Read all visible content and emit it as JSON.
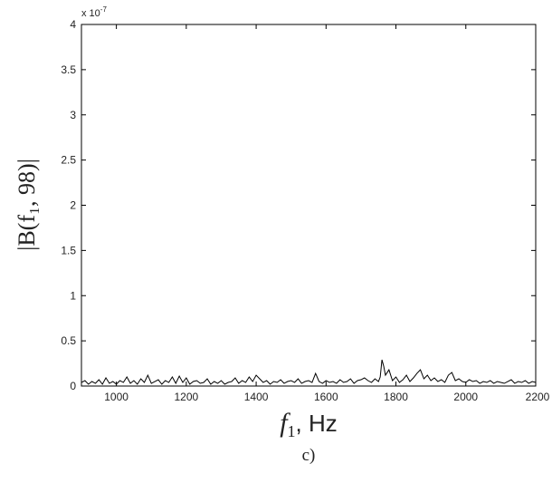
{
  "chart_data": {
    "type": "line",
    "xlabel_main": "f",
    "xlabel_sub": "1",
    "xlabel_unit": ", Hz",
    "ylabel": "|B(f₁, 98)|",
    "exponent_label": "x 10",
    "exponent_power": "-7",
    "caption": "c)",
    "xlim": [
      900,
      2200
    ],
    "ylim": [
      0,
      4
    ],
    "x_ticks": [
      1000,
      1200,
      1400,
      1600,
      1800,
      2000,
      2200
    ],
    "y_ticks": [
      0,
      0.5,
      1,
      1.5,
      2,
      2.5,
      3,
      3.5,
      4
    ],
    "x_tick_labels": [
      "1000",
      "1200",
      "1400",
      "1600",
      "1800",
      "2000",
      "2200"
    ],
    "y_tick_labels": [
      "0",
      "0.5",
      "1",
      "1.5",
      "2",
      "2.5",
      "3",
      "3.5",
      "4"
    ],
    "line_color": "#000000",
    "grid": false,
    "series": [
      {
        "x": [
          900,
          910,
          920,
          930,
          940,
          950,
          960,
          970,
          980,
          990,
          1000,
          1010,
          1020,
          1030,
          1040,
          1050,
          1060,
          1070,
          1080,
          1090,
          1100,
          1110,
          1120,
          1130,
          1140,
          1150,
          1160,
          1170,
          1180,
          1190,
          1200,
          1210,
          1220,
          1230,
          1240,
          1250,
          1260,
          1270,
          1280,
          1290,
          1300,
          1310,
          1320,
          1330,
          1340,
          1350,
          1360,
          1370,
          1380,
          1390,
          1400,
          1410,
          1420,
          1430,
          1440,
          1450,
          1460,
          1470,
          1480,
          1490,
          1500,
          1510,
          1520,
          1530,
          1540,
          1550,
          1560,
          1570,
          1580,
          1590,
          1600,
          1610,
          1620,
          1630,
          1640,
          1650,
          1660,
          1670,
          1680,
          1690,
          1700,
          1710,
          1720,
          1730,
          1740,
          1750,
          1755,
          1760,
          1765,
          1770,
          1780,
          1790,
          1800,
          1810,
          1820,
          1830,
          1840,
          1850,
          1860,
          1870,
          1880,
          1890,
          1900,
          1910,
          1920,
          1930,
          1940,
          1950,
          1960,
          1970,
          1980,
          1990,
          2000,
          2010,
          2020,
          2030,
          2040,
          2050,
          2060,
          2070,
          2080,
          2090,
          2100,
          2110,
          2120,
          2130,
          2140,
          2150,
          2160,
          2170,
          2180,
          2190,
          2200
        ],
        "values": [
          0.04,
          0.06,
          0.02,
          0.05,
          0.03,
          0.07,
          0.02,
          0.09,
          0.03,
          0.05,
          0.02,
          0.06,
          0.04,
          0.1,
          0.03,
          0.06,
          0.02,
          0.08,
          0.04,
          0.12,
          0.03,
          0.05,
          0.07,
          0.02,
          0.06,
          0.04,
          0.1,
          0.03,
          0.11,
          0.04,
          0.09,
          0.02,
          0.05,
          0.06,
          0.03,
          0.04,
          0.08,
          0.02,
          0.05,
          0.03,
          0.06,
          0.02,
          0.04,
          0.05,
          0.09,
          0.03,
          0.06,
          0.04,
          0.1,
          0.05,
          0.12,
          0.08,
          0.04,
          0.06,
          0.02,
          0.05,
          0.04,
          0.07,
          0.03,
          0.05,
          0.06,
          0.04,
          0.08,
          0.03,
          0.05,
          0.06,
          0.04,
          0.14,
          0.05,
          0.03,
          0.06,
          0.04,
          0.05,
          0.03,
          0.07,
          0.04,
          0.05,
          0.08,
          0.03,
          0.06,
          0.07,
          0.09,
          0.06,
          0.04,
          0.08,
          0.05,
          0.1,
          0.29,
          0.22,
          0.12,
          0.18,
          0.06,
          0.1,
          0.04,
          0.07,
          0.12,
          0.05,
          0.09,
          0.14,
          0.18,
          0.08,
          0.12,
          0.06,
          0.09,
          0.05,
          0.07,
          0.04,
          0.12,
          0.15,
          0.06,
          0.08,
          0.05,
          0.04,
          0.07,
          0.05,
          0.06,
          0.03,
          0.05,
          0.04,
          0.06,
          0.03,
          0.05,
          0.04,
          0.03,
          0.05,
          0.07,
          0.03,
          0.05,
          0.04,
          0.06,
          0.03,
          0.05,
          0.04
        ]
      }
    ]
  }
}
